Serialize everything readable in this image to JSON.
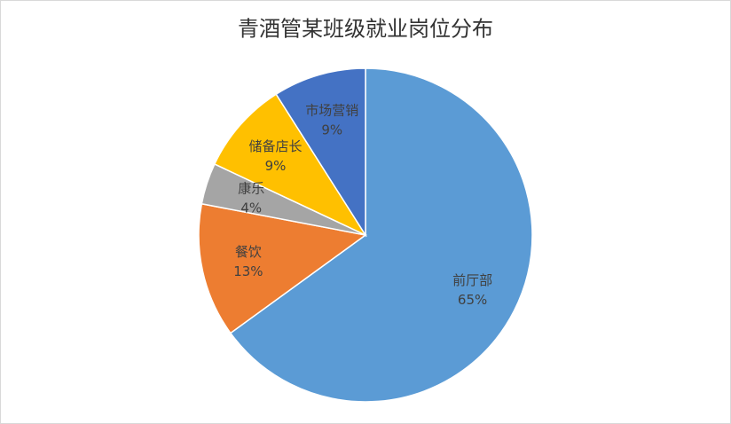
{
  "chart_data": {
    "type": "pie",
    "title": "青酒管某班级就业岗位分布",
    "categories": [
      "前厅部",
      "餐饮",
      "康乐",
      "储备店长",
      "市场营销"
    ],
    "values": [
      65,
      13,
      4,
      9,
      9
    ],
    "value_labels": [
      "65%",
      "13%",
      "4%",
      "9%",
      "9%"
    ],
    "colors": [
      "#5b9bd5",
      "#ed7d31",
      "#a5a5a5",
      "#ffc000",
      "#4472c4"
    ]
  }
}
